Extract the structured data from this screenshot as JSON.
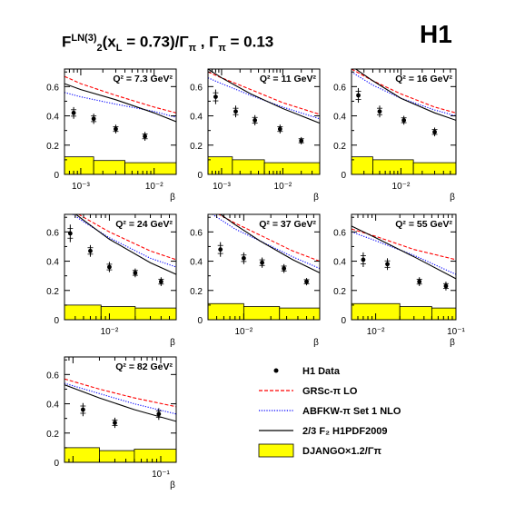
{
  "figure": {
    "title_main": "F",
    "title_sup": "LN(3)",
    "title_sub": "2",
    "title_rest": "(x",
    "title_sub2": "L",
    "title_tail": " = 0.73)/Γ",
    "title_sub3": "π",
    "title_end": " , Γ",
    "title_sub4": "π",
    "title_value": " = 0.13",
    "logo": "H1"
  },
  "legend": {
    "entries": [
      {
        "label": "H1 Data",
        "style": "marker",
        "color": "#000000"
      },
      {
        "label": "GRSc-π LO",
        "style": "dashed",
        "color": "#ff0000"
      },
      {
        "label": "ABFKW-π Set 1 NLO",
        "style": "dotted",
        "color": "#0000ff"
      },
      {
        "label": "2/3 F₂  H1PDF2009",
        "style": "solid",
        "color": "#000000"
      },
      {
        "label": "DJANGO×1.2/Γπ",
        "style": "fill",
        "color": "#ffff00"
      }
    ]
  },
  "chart_data": [
    {
      "type": "scatter",
      "label": "Q² = 7.3 GeV²",
      "xlabel": "β",
      "ylabel": "",
      "xlog": true,
      "xlim": [
        0.0006,
        0.02
      ],
      "ylim": [
        0,
        0.72
      ],
      "yticks": [
        0,
        0.2,
        0.4,
        0.6
      ],
      "xticks": [
        {
          "v": 0.001,
          "l": "10⁻³"
        },
        {
          "v": 0.01,
          "l": "10⁻²"
        }
      ],
      "data": [
        [
          0.0008,
          0.42,
          0.04
        ],
        [
          0.0015,
          0.38,
          0.035
        ],
        [
          0.003,
          0.31,
          0.03
        ],
        [
          0.0075,
          0.26,
          0.03
        ]
      ],
      "grs": [
        [
          0.0006,
          0.67
        ],
        [
          0.001,
          0.62
        ],
        [
          0.003,
          0.54
        ],
        [
          0.01,
          0.46
        ],
        [
          0.02,
          0.42
        ]
      ],
      "abfkw": [
        [
          0.0006,
          0.56
        ],
        [
          0.001,
          0.53
        ],
        [
          0.003,
          0.48
        ],
        [
          0.01,
          0.43
        ],
        [
          0.02,
          0.39
        ]
      ],
      "h1pdf": [
        [
          0.0006,
          0.62
        ],
        [
          0.001,
          0.58
        ],
        [
          0.003,
          0.51
        ],
        [
          0.01,
          0.42
        ],
        [
          0.02,
          0.36
        ]
      ],
      "django": [
        [
          0.0006,
          0.0015,
          0.12
        ],
        [
          0.0015,
          0.004,
          0.095
        ],
        [
          0.004,
          0.02,
          0.08
        ]
      ]
    },
    {
      "type": "scatter",
      "label": "Q² = 11 GeV²",
      "xlabel": "β",
      "ylabel": "",
      "xlog": true,
      "xlim": [
        0.0006,
        0.04
      ],
      "ylim": [
        0,
        0.72
      ],
      "yticks": [
        0,
        0.2,
        0.4,
        0.6
      ],
      "xticks": [
        {
          "v": 0.001,
          "l": "10⁻³"
        },
        {
          "v": 0.01,
          "l": "10⁻²"
        }
      ],
      "data": [
        [
          0.0008,
          0.53,
          0.05
        ],
        [
          0.0017,
          0.43,
          0.04
        ],
        [
          0.0035,
          0.37,
          0.035
        ],
        [
          0.009,
          0.31,
          0.03
        ],
        [
          0.02,
          0.23,
          0.025
        ]
      ],
      "grs": [
        [
          0.0006,
          0.7
        ],
        [
          0.001,
          0.66
        ],
        [
          0.003,
          0.58
        ],
        [
          0.01,
          0.49
        ],
        [
          0.04,
          0.41
        ]
      ],
      "abfkw": [
        [
          0.0006,
          0.66
        ],
        [
          0.001,
          0.62
        ],
        [
          0.003,
          0.54
        ],
        [
          0.01,
          0.46
        ],
        [
          0.04,
          0.38
        ]
      ],
      "h1pdf": [
        [
          0.0006,
          0.72
        ],
        [
          0.001,
          0.66
        ],
        [
          0.003,
          0.55
        ],
        [
          0.01,
          0.45
        ],
        [
          0.04,
          0.35
        ]
      ],
      "django": [
        [
          0.0006,
          0.0015,
          0.12
        ],
        [
          0.0015,
          0.005,
          0.1
        ],
        [
          0.005,
          0.04,
          0.08
        ]
      ]
    },
    {
      "type": "scatter",
      "label": "Q² = 16 GeV²",
      "xlabel": "β",
      "ylabel": "",
      "xlog": true,
      "xlim": [
        0.002,
        0.06
      ],
      "ylim": [
        0,
        0.72
      ],
      "yticks": [
        0,
        0.2,
        0.4,
        0.6
      ],
      "xticks": [
        {
          "v": 0.01,
          "l": "10⁻²"
        }
      ],
      "data": [
        [
          0.0025,
          0.54,
          0.05
        ],
        [
          0.005,
          0.43,
          0.04
        ],
        [
          0.011,
          0.37,
          0.03
        ],
        [
          0.03,
          0.29,
          0.03
        ]
      ],
      "grs": [
        [
          0.002,
          0.72
        ],
        [
          0.004,
          0.64
        ],
        [
          0.01,
          0.55
        ],
        [
          0.03,
          0.46
        ],
        [
          0.06,
          0.42
        ]
      ],
      "abfkw": [
        [
          0.002,
          0.7
        ],
        [
          0.004,
          0.61
        ],
        [
          0.01,
          0.52
        ],
        [
          0.03,
          0.44
        ],
        [
          0.06,
          0.4
        ]
      ],
      "h1pdf": [
        [
          0.002,
          0.74
        ],
        [
          0.004,
          0.64
        ],
        [
          0.01,
          0.52
        ],
        [
          0.03,
          0.42
        ],
        [
          0.06,
          0.37
        ]
      ],
      "django": [
        [
          0.002,
          0.004,
          0.12
        ],
        [
          0.004,
          0.015,
          0.1
        ],
        [
          0.015,
          0.06,
          0.08
        ]
      ]
    },
    {
      "type": "scatter",
      "label": "Q² = 24 GeV²",
      "xlabel": "β",
      "ylabel": "",
      "xlog": true,
      "xlim": [
        0.003,
        0.06
      ],
      "ylim": [
        0,
        0.72
      ],
      "yticks": [
        0,
        0.2,
        0.4,
        0.6
      ],
      "xticks": [
        {
          "v": 0.01,
          "l": "10⁻²"
        }
      ],
      "data": [
        [
          0.0035,
          0.59,
          0.06
        ],
        [
          0.006,
          0.47,
          0.04
        ],
        [
          0.01,
          0.36,
          0.035
        ],
        [
          0.02,
          0.32,
          0.03
        ],
        [
          0.04,
          0.26,
          0.03
        ]
      ],
      "grs": [
        [
          0.003,
          0.78
        ],
        [
          0.005,
          0.7
        ],
        [
          0.01,
          0.6
        ],
        [
          0.03,
          0.47
        ],
        [
          0.06,
          0.41
        ]
      ],
      "abfkw": [
        [
          0.003,
          0.76
        ],
        [
          0.005,
          0.67
        ],
        [
          0.01,
          0.56
        ],
        [
          0.03,
          0.42
        ],
        [
          0.06,
          0.36
        ]
      ],
      "h1pdf": [
        [
          0.003,
          0.78
        ],
        [
          0.005,
          0.68
        ],
        [
          0.01,
          0.55
        ],
        [
          0.03,
          0.39
        ],
        [
          0.06,
          0.31
        ]
      ],
      "django": [
        [
          0.003,
          0.008,
          0.1
        ],
        [
          0.008,
          0.02,
          0.09
        ],
        [
          0.02,
          0.06,
          0.08
        ]
      ]
    },
    {
      "type": "scatter",
      "label": "Q² = 37 GeV²",
      "xlabel": "β",
      "ylabel": "",
      "xlog": true,
      "xlim": [
        0.004,
        0.07
      ],
      "ylim": [
        0,
        0.72
      ],
      "yticks": [
        0,
        0.2,
        0.4,
        0.6
      ],
      "xticks": [
        {
          "v": 0.01,
          "l": "10⁻²"
        }
      ],
      "data": [
        [
          0.0055,
          0.48,
          0.05
        ],
        [
          0.01,
          0.42,
          0.04
        ],
        [
          0.016,
          0.39,
          0.035
        ],
        [
          0.028,
          0.35,
          0.03
        ],
        [
          0.05,
          0.26,
          0.025
        ]
      ],
      "grs": [
        [
          0.004,
          0.76
        ],
        [
          0.008,
          0.66
        ],
        [
          0.015,
          0.58
        ],
        [
          0.035,
          0.47
        ],
        [
          0.07,
          0.4
        ]
      ],
      "abfkw": [
        [
          0.004,
          0.74
        ],
        [
          0.008,
          0.62
        ],
        [
          0.015,
          0.54
        ],
        [
          0.035,
          0.43
        ],
        [
          0.07,
          0.35
        ]
      ],
      "h1pdf": [
        [
          0.004,
          0.78
        ],
        [
          0.008,
          0.65
        ],
        [
          0.015,
          0.54
        ],
        [
          0.035,
          0.41
        ],
        [
          0.07,
          0.32
        ]
      ],
      "django": [
        [
          0.004,
          0.01,
          0.11
        ],
        [
          0.01,
          0.025,
          0.09
        ],
        [
          0.025,
          0.07,
          0.08
        ]
      ]
    },
    {
      "type": "scatter",
      "label": "Q² = 55 GeV²",
      "xlabel": "β",
      "ylabel": "",
      "xlog": true,
      "xlim": [
        0.005,
        0.1
      ],
      "ylim": [
        0,
        0.72
      ],
      "yticks": [
        0,
        0.2,
        0.4,
        0.6
      ],
      "xticks": [
        {
          "v": 0.01,
          "l": "10⁻²"
        },
        {
          "v": 0.1,
          "l": "10⁻¹"
        }
      ],
      "data": [
        [
          0.007,
          0.41,
          0.05
        ],
        [
          0.014,
          0.38,
          0.04
        ],
        [
          0.035,
          0.26,
          0.03
        ],
        [
          0.075,
          0.23,
          0.03
        ]
      ],
      "grs": [
        [
          0.005,
          0.62
        ],
        [
          0.01,
          0.57
        ],
        [
          0.03,
          0.48
        ],
        [
          0.1,
          0.41
        ]
      ],
      "abfkw": [
        [
          0.005,
          0.6
        ],
        [
          0.01,
          0.54
        ],
        [
          0.03,
          0.44
        ],
        [
          0.1,
          0.31
        ]
      ],
      "h1pdf": [
        [
          0.005,
          0.64
        ],
        [
          0.01,
          0.56
        ],
        [
          0.03,
          0.43
        ],
        [
          0.1,
          0.28
        ]
      ],
      "django": [
        [
          0.005,
          0.02,
          0.11
        ],
        [
          0.02,
          0.05,
          0.09
        ],
        [
          0.05,
          0.1,
          0.08
        ]
      ]
    },
    {
      "type": "scatter",
      "label": "Q² = 82 GeV²",
      "xlabel": "β",
      "ylabel": "",
      "xlog": true,
      "xlim": [
        0.008,
        0.15
      ],
      "ylim": [
        0,
        0.72
      ],
      "yticks": [
        0,
        0.2,
        0.4,
        0.6
      ],
      "xticks": [
        {
          "v": 0.1,
          "l": "10⁻¹"
        }
      ],
      "data": [
        [
          0.013,
          0.36,
          0.045
        ],
        [
          0.03,
          0.27,
          0.035
        ],
        [
          0.095,
          0.33,
          0.04
        ]
      ],
      "grs": [
        [
          0.008,
          0.57
        ],
        [
          0.02,
          0.5
        ],
        [
          0.05,
          0.44
        ],
        [
          0.15,
          0.38
        ]
      ],
      "abfkw": [
        [
          0.008,
          0.54
        ],
        [
          0.02,
          0.47
        ],
        [
          0.05,
          0.4
        ],
        [
          0.15,
          0.33
        ]
      ],
      "h1pdf": [
        [
          0.008,
          0.53
        ],
        [
          0.02,
          0.44
        ],
        [
          0.05,
          0.36
        ],
        [
          0.15,
          0.28
        ]
      ],
      "django": [
        [
          0.008,
          0.02,
          0.1
        ],
        [
          0.02,
          0.05,
          0.08
        ],
        [
          0.05,
          0.15,
          0.09
        ]
      ]
    }
  ]
}
